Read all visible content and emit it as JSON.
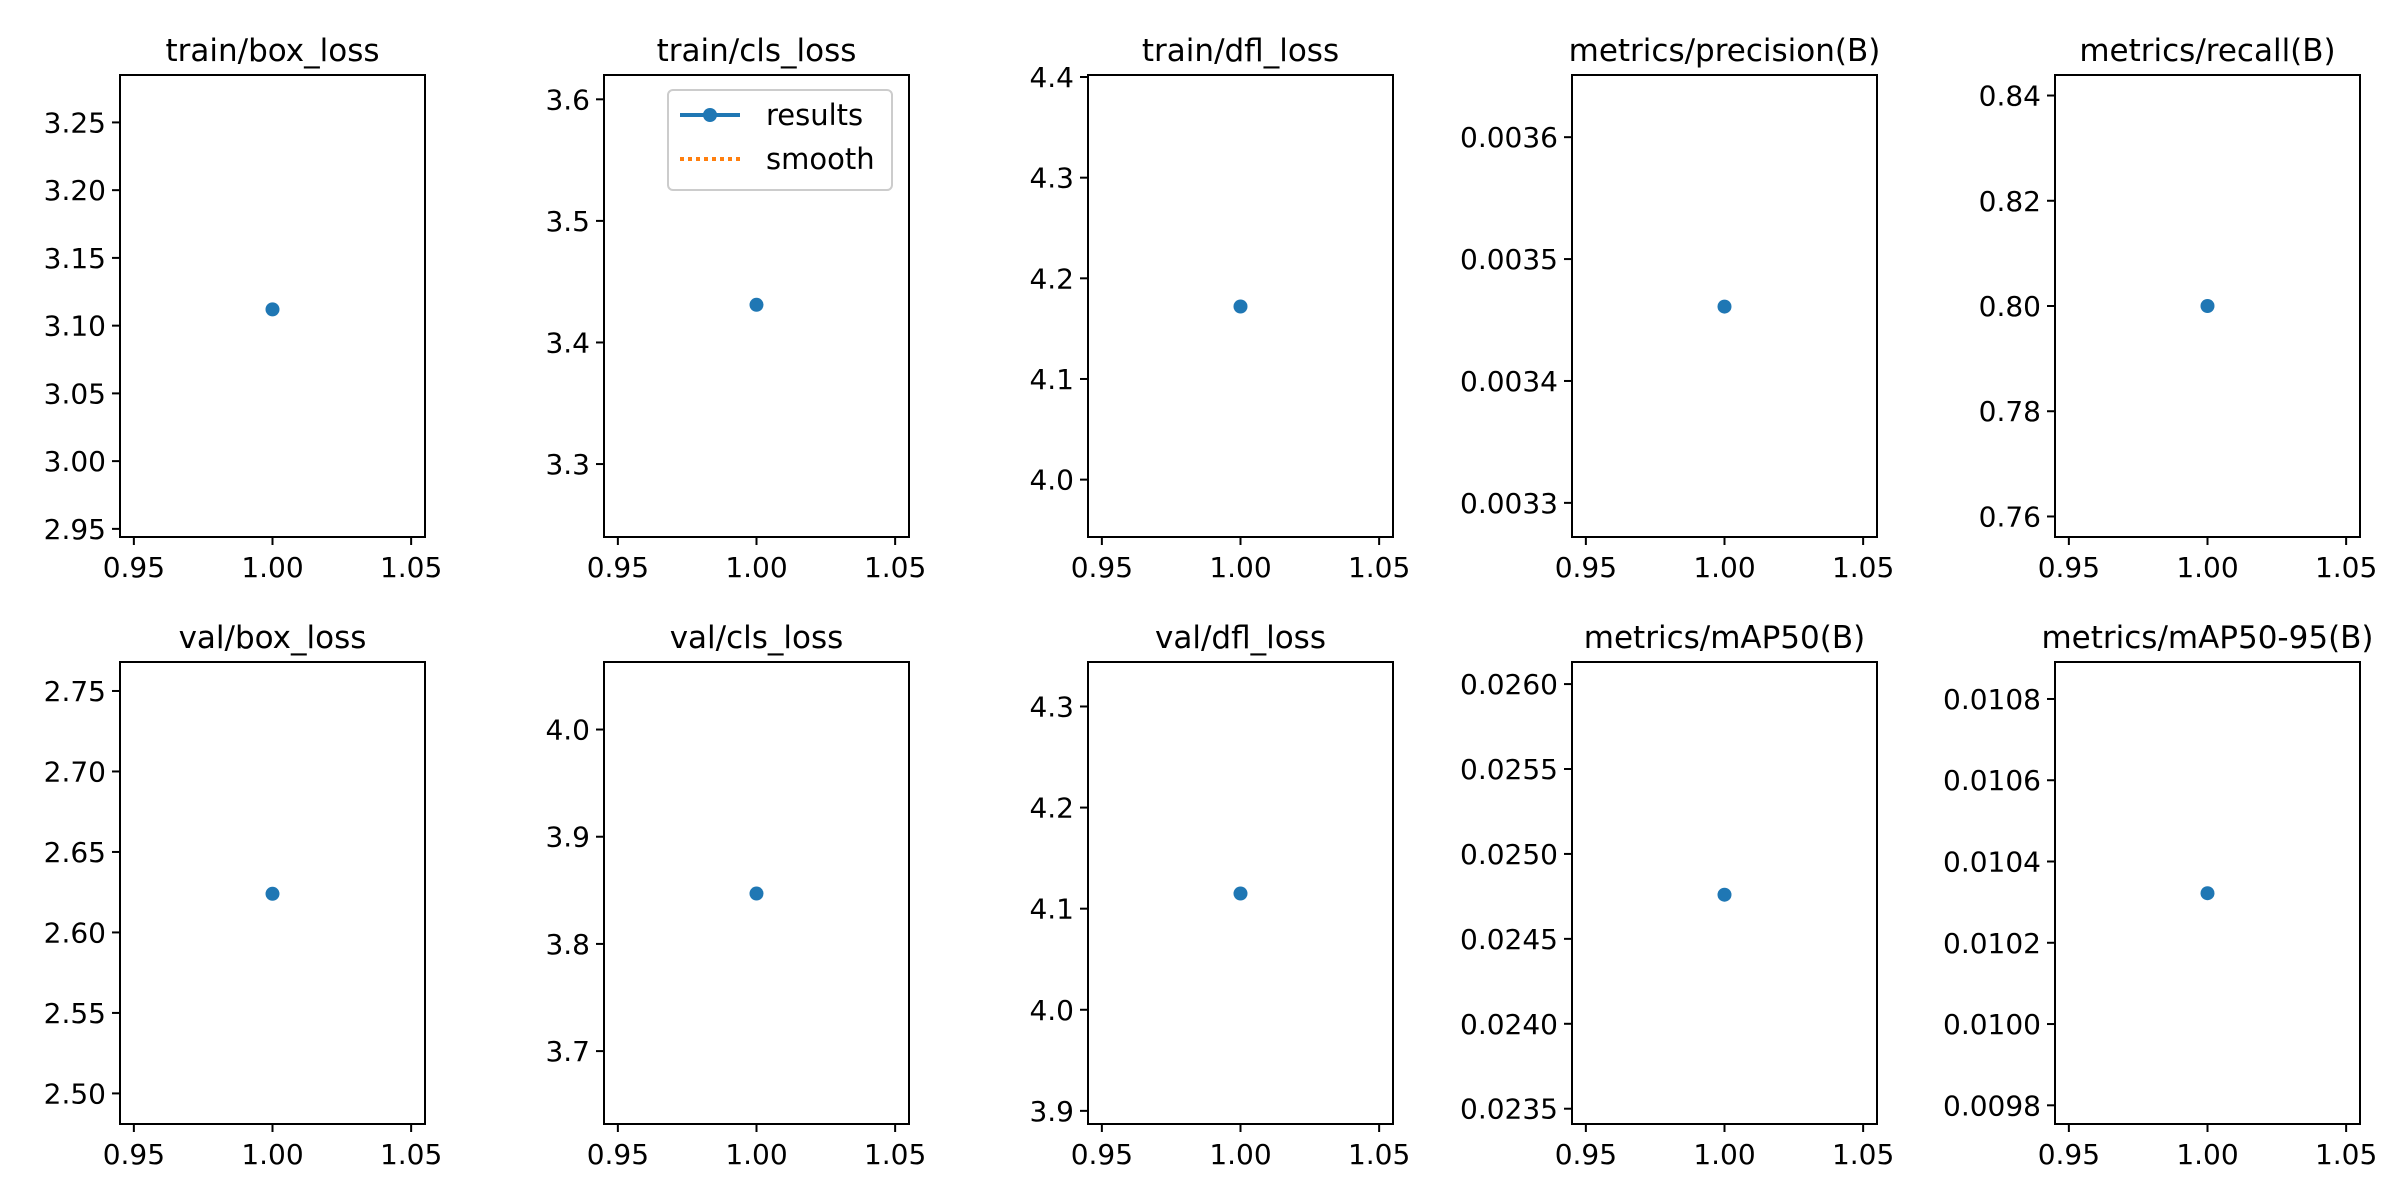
{
  "figure": {
    "background": "#ffffff"
  },
  "legend": {
    "placement": "upper-right of second panel",
    "entries": [
      {
        "label": "results",
        "color": "#1f77b4",
        "style": "solid-with-marker"
      },
      {
        "label": "smooth",
        "color": "#ff7f0e",
        "style": "dotted"
      }
    ]
  },
  "chart_data": [
    {
      "type": "scatter",
      "title": "train/box_loss",
      "xlabel": "",
      "ylabel": "",
      "xlim": [
        0.945,
        1.055
      ],
      "ylim": [
        2.944,
        3.285
      ],
      "x_ticks": [
        "0.95",
        "1.00",
        "1.05"
      ],
      "y_ticks": [
        "2.95",
        "3.00",
        "3.05",
        "3.10",
        "3.15",
        "3.20",
        "3.25"
      ],
      "series": [
        {
          "name": "results",
          "color": "#1f77b4",
          "x": [
            1.0
          ],
          "y": [
            3.112
          ]
        }
      ]
    },
    {
      "type": "scatter",
      "title": "train/cls_loss",
      "xlabel": "",
      "ylabel": "",
      "xlim": [
        0.945,
        1.055
      ],
      "ylim": [
        3.24,
        3.62
      ],
      "x_ticks": [
        "0.95",
        "1.00",
        "1.05"
      ],
      "y_ticks": [
        "3.3",
        "3.4",
        "3.5",
        "3.6"
      ],
      "series": [
        {
          "name": "results",
          "color": "#1f77b4",
          "x": [
            1.0
          ],
          "y": [
            3.431
          ]
        }
      ]
    },
    {
      "type": "scatter",
      "title": "train/dfl_loss",
      "xlabel": "",
      "ylabel": "",
      "xlim": [
        0.945,
        1.055
      ],
      "ylim": [
        3.943,
        4.402
      ],
      "x_ticks": [
        "0.95",
        "1.00",
        "1.05"
      ],
      "y_ticks": [
        "4.0",
        "4.1",
        "4.2",
        "4.3",
        "4.4"
      ],
      "series": [
        {
          "name": "results",
          "color": "#1f77b4",
          "x": [
            1.0
          ],
          "y": [
            4.172
          ]
        }
      ]
    },
    {
      "type": "scatter",
      "title": "metrics/precision(B)",
      "xlabel": "",
      "ylabel": "",
      "xlim": [
        0.945,
        1.055
      ],
      "ylim": [
        0.003272,
        0.003651
      ],
      "x_ticks": [
        "0.95",
        "1.00",
        "1.05"
      ],
      "y_ticks": [
        "0.0033",
        "0.0034",
        "0.0035",
        "0.0036"
      ],
      "series": [
        {
          "name": "results",
          "color": "#1f77b4",
          "x": [
            1.0
          ],
          "y": [
            0.003461
          ]
        }
      ]
    },
    {
      "type": "scatter",
      "title": "metrics/recall(B)",
      "xlabel": "",
      "ylabel": "",
      "xlim": [
        0.945,
        1.055
      ],
      "ylim": [
        0.7561,
        0.8439
      ],
      "x_ticks": [
        "0.95",
        "1.00",
        "1.05"
      ],
      "y_ticks": [
        "0.76",
        "0.78",
        "0.80",
        "0.82",
        "0.84"
      ],
      "series": [
        {
          "name": "results",
          "color": "#1f77b4",
          "x": [
            1.0
          ],
          "y": [
            0.8
          ]
        }
      ]
    },
    {
      "type": "scatter",
      "title": "val/box_loss",
      "xlabel": "",
      "ylabel": "",
      "xlim": [
        0.945,
        1.055
      ],
      "ylim": [
        2.481,
        2.768
      ],
      "x_ticks": [
        "0.95",
        "1.00",
        "1.05"
      ],
      "y_ticks": [
        "2.50",
        "2.55",
        "2.60",
        "2.65",
        "2.70",
        "2.75"
      ],
      "series": [
        {
          "name": "results",
          "color": "#1f77b4",
          "x": [
            1.0
          ],
          "y": [
            2.624
          ]
        }
      ]
    },
    {
      "type": "scatter",
      "title": "val/cls_loss",
      "xlabel": "",
      "ylabel": "",
      "xlim": [
        0.945,
        1.055
      ],
      "ylim": [
        3.632,
        4.063
      ],
      "x_ticks": [
        "0.95",
        "1.00",
        "1.05"
      ],
      "y_ticks": [
        "3.7",
        "3.8",
        "3.9",
        "4.0"
      ],
      "series": [
        {
          "name": "results",
          "color": "#1f77b4",
          "x": [
            1.0
          ],
          "y": [
            3.847
          ]
        }
      ]
    },
    {
      "type": "scatter",
      "title": "val/dfl_loss",
      "xlabel": "",
      "ylabel": "",
      "xlim": [
        0.945,
        1.055
      ],
      "ylim": [
        3.887,
        4.344
      ],
      "x_ticks": [
        "0.95",
        "1.00",
        "1.05"
      ],
      "y_ticks": [
        "3.9",
        "4.0",
        "4.1",
        "4.2",
        "4.3"
      ],
      "series": [
        {
          "name": "results",
          "color": "#1f77b4",
          "x": [
            1.0
          ],
          "y": [
            4.115
          ]
        }
      ]
    },
    {
      "type": "scatter",
      "title": "metrics/mAP50(B)",
      "xlabel": "",
      "ylabel": "",
      "xlim": [
        0.945,
        1.055
      ],
      "ylim": [
        0.02341,
        0.02613
      ],
      "x_ticks": [
        "0.95",
        "1.00",
        "1.05"
      ],
      "y_ticks": [
        "0.0235",
        "0.0240",
        "0.0245",
        "0.0250",
        "0.0255",
        "0.0260"
      ],
      "series": [
        {
          "name": "results",
          "color": "#1f77b4",
          "x": [
            1.0
          ],
          "y": [
            0.02476
          ]
        }
      ]
    },
    {
      "type": "scatter",
      "title": "metrics/mAP50-95(B)",
      "xlabel": "",
      "ylabel": "",
      "xlim": [
        0.945,
        1.055
      ],
      "ylim": [
        0.009754,
        0.010891
      ],
      "x_ticks": [
        "0.95",
        "1.00",
        "1.05"
      ],
      "y_ticks": [
        "0.0098",
        "0.0100",
        "0.0102",
        "0.0104",
        "0.0106",
        "0.0108"
      ],
      "series": [
        {
          "name": "results",
          "color": "#1f77b4",
          "x": [
            1.0
          ],
          "y": [
            0.010322
          ]
        }
      ]
    }
  ]
}
